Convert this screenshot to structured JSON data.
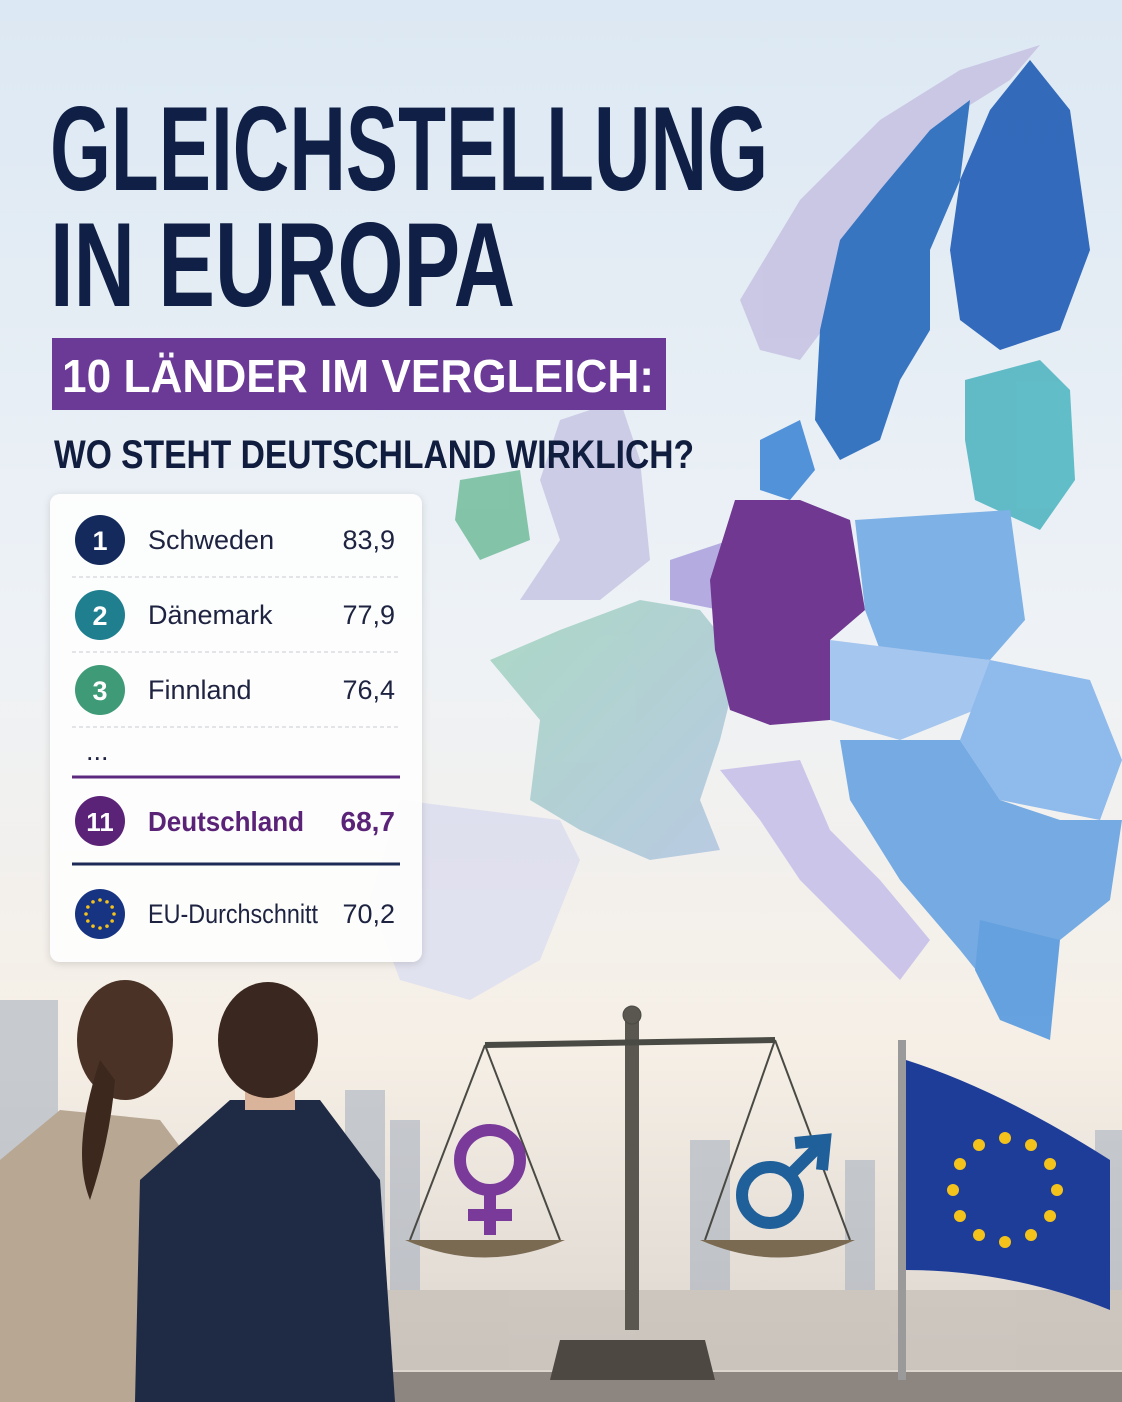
{
  "header": {
    "title_lines": [
      "GLEICHSTELLUNG",
      "IN EUROPA"
    ],
    "subtitle": "10 LÄNDER IM VERGLEICH:",
    "question": "WO STEHT DEUTSCHLAND WIRKLICH?"
  },
  "ranking": {
    "rows": [
      {
        "rank": "1",
        "country": "Schweden",
        "score": "83,9"
      },
      {
        "rank": "2",
        "country": "Dänemark",
        "score": "77,9"
      },
      {
        "rank": "3",
        "country": "Finnland",
        "score": "76,4"
      }
    ],
    "ellipsis": "...",
    "highlight": {
      "rank": "11",
      "country": "Deutschland",
      "score": "68,7"
    },
    "average": {
      "country": "EU-Durchschnitt",
      "score": "70,2"
    }
  }
}
